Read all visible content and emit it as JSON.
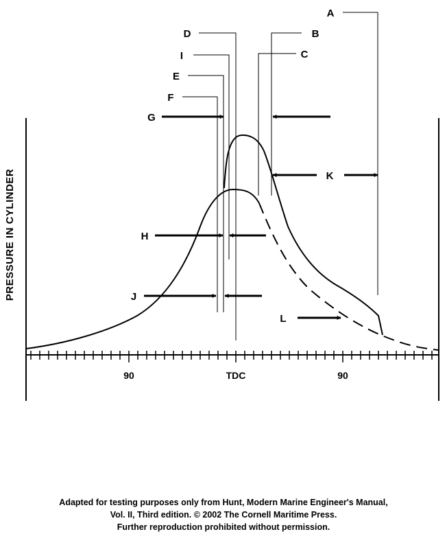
{
  "diagram": {
    "y_axis_label": "PRESSURE IN CYLINDER",
    "x_ticks": [
      "90",
      "TDC",
      "90"
    ],
    "labels": {
      "A": "A",
      "B": "B",
      "C": "C",
      "D": "D",
      "E": "E",
      "F": "F",
      "G": "G",
      "H": "H",
      "I": "I",
      "J": "J",
      "K": "K",
      "L": "L"
    }
  },
  "credit": {
    "line1": "Adapted for testing purposes only from Hunt, Modern Marine Engineer's Manual,",
    "line2": "Vol. II, Third edition.  © 2002 The Cornell Maritime Press.",
    "line3": "Further reproduction prohibited without permission."
  }
}
